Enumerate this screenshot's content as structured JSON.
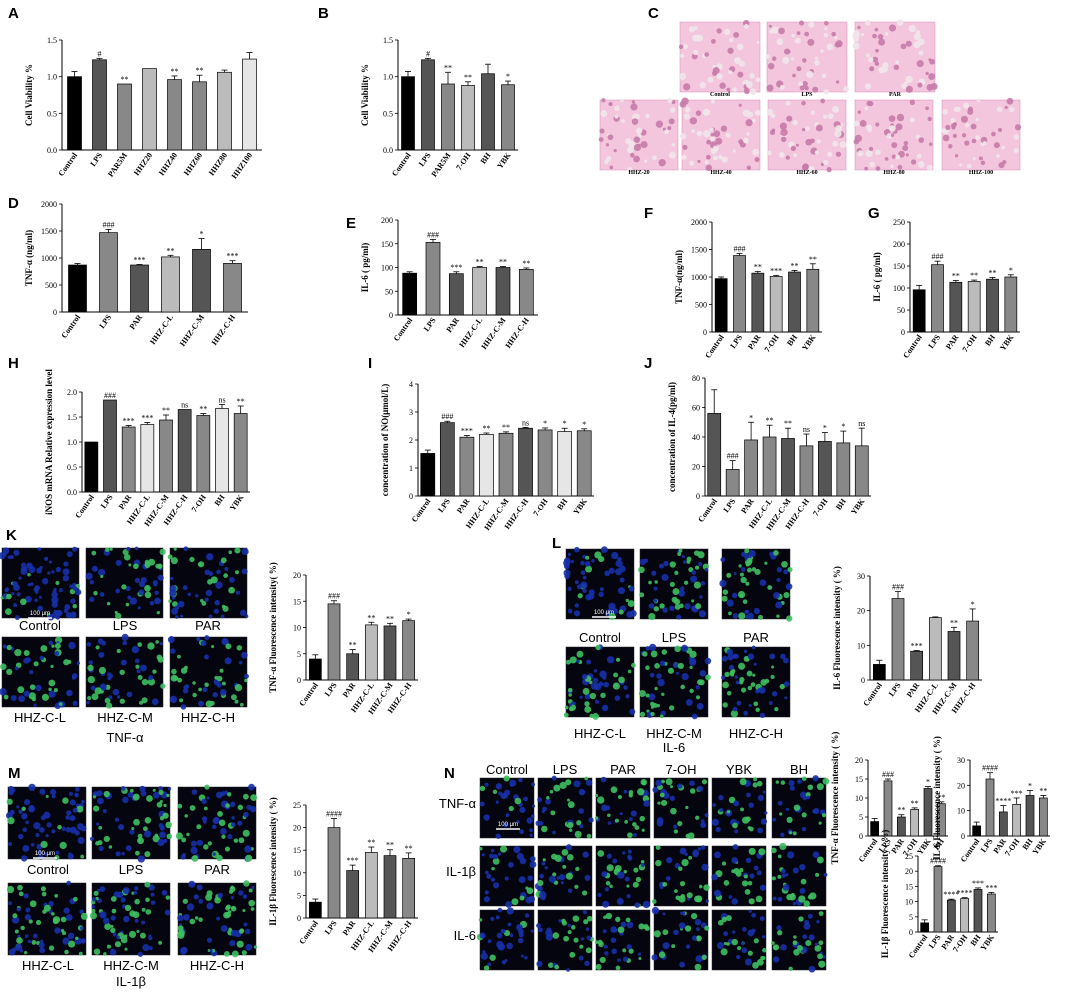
{
  "colors": {
    "black": "#000000",
    "dark": "#555555",
    "mid": "#888888",
    "light": "#bbbbbb",
    "vlight": "#e6e6e6",
    "fluor_blue": "#1730a8",
    "fluor_green": "#3ec060",
    "stain_pink": "#e89ac4"
  },
  "panels": {
    "A": "A",
    "B": "B",
    "C": "C",
    "D": "D",
    "E": "E",
    "F": "F",
    "G": "G",
    "H": "H",
    "I": "I",
    "J": "J",
    "K": "K",
    "L": "L",
    "M": "M",
    "N": "N"
  },
  "captions": {
    "C": [
      "Control",
      "LPS",
      "PAR",
      "HHZ-20",
      "HHZ-40",
      "HHZ-60",
      "HHZ-80",
      "HHZ-100"
    ],
    "K": [
      "Control",
      "LPS",
      "PAR",
      "HHZ-C-L",
      "HHZ-C-M",
      "HHZ-C-H"
    ],
    "K_title": "TNF-α",
    "L": [
      "Control",
      "LPS",
      "PAR",
      "HHZ-C-L",
      "HHZ-C-M",
      "HHZ-C-H"
    ],
    "L_title": "IL-6",
    "M": [
      "Control",
      "LPS",
      "PAR",
      "HHZ-C-L",
      "HHZ-C-M",
      "HHZ-C-H"
    ],
    "M_title": "IL-1β",
    "N_cols": [
      "Control",
      "LPS",
      "PAR",
      "7-OH",
      "YBK",
      "BH"
    ],
    "N_rows": [
      "TNF-α",
      "IL-1β",
      "IL-6"
    ],
    "scalebar": "100 μm"
  },
  "chart_data": [
    {
      "id": "A",
      "type": "bar",
      "ylabel": "Cell Viability %",
      "yticks": [
        "0.0",
        "0.5",
        "1.0",
        "1.5"
      ],
      "ylim": [
        0,
        1.5
      ],
      "categories": [
        "Control",
        "LPS",
        "PAR5M",
        "HHZ20",
        "HHZ40",
        "HHZ60",
        "HHZ80",
        "HHZ100"
      ],
      "values": [
        1.0,
        1.23,
        0.9,
        1.11,
        0.96,
        0.93,
        1.06,
        1.24
      ],
      "errors": [
        0.07,
        0.02,
        0,
        0,
        0.05,
        0.09,
        0.03,
        0.09
      ],
      "labels": [
        "",
        "#",
        "**",
        "",
        "**",
        "**",
        "",
        ""
      ],
      "fills": [
        "#000000",
        "#555555",
        "#888888",
        "#bbbbbb",
        "#888888",
        "#888888",
        "#bbbbbb",
        "#e6e6e6"
      ]
    },
    {
      "id": "B",
      "type": "bar",
      "ylabel": "Cell Viability %",
      "yticks": [
        "0.0",
        "0.5",
        "1.0",
        "1.5"
      ],
      "ylim": [
        0,
        1.5
      ],
      "categories": [
        "Control",
        "LPS",
        "PAR5M",
        "7-OH",
        "BH",
        "YBK"
      ],
      "values": [
        1.0,
        1.23,
        0.9,
        0.88,
        1.04,
        0.89
      ],
      "errors": [
        0.07,
        0.02,
        0.16,
        0.05,
        0.13,
        0.05
      ],
      "labels": [
        "",
        "#",
        "**",
        "**",
        "",
        "*"
      ],
      "fills": [
        "#000000",
        "#555555",
        "#888888",
        "#bbbbbb",
        "#555555",
        "#888888"
      ]
    },
    {
      "id": "D",
      "type": "bar",
      "ylabel": "TNF-α (ng/ml)",
      "yticks": [
        "0",
        "500",
        "1000",
        "1500",
        "2000"
      ],
      "ylim": [
        0,
        2000
      ],
      "categories": [
        "Control",
        "LPS",
        "PAR",
        "HHZ-C-L",
        "HHZ-C-M",
        "HHZ-C-H"
      ],
      "values": [
        870,
        1470,
        870,
        1020,
        1160,
        900
      ],
      "errors": [
        30,
        60,
        10,
        30,
        200,
        50
      ],
      "labels": [
        "",
        "###",
        "***",
        "**",
        "*",
        "***"
      ],
      "fills": [
        "#000000",
        "#888888",
        "#555555",
        "#bbbbbb",
        "#555555",
        "#888888"
      ]
    },
    {
      "id": "E",
      "type": "bar",
      "ylabel": "IL-6 ( pg/ml)",
      "yticks": [
        "0",
        "50",
        "100",
        "150",
        "200"
      ],
      "ylim": [
        0,
        200
      ],
      "categories": [
        "Control",
        "LPS",
        "PAR",
        "HHZ-C-L",
        "HHZ-C-M",
        "HHZ-C-H"
      ],
      "values": [
        88,
        153,
        87,
        100,
        100,
        96
      ],
      "errors": [
        3,
        6,
        4,
        2,
        2,
        3
      ],
      "labels": [
        "",
        "###",
        "***",
        "**",
        "**",
        "**"
      ],
      "fills": [
        "#000000",
        "#888888",
        "#555555",
        "#bbbbbb",
        "#555555",
        "#888888"
      ]
    },
    {
      "id": "F",
      "type": "bar",
      "ylabel": "TNF-α(ng/ml)",
      "yticks": [
        "0",
        "500",
        "1000",
        "1500",
        "2000"
      ],
      "ylim": [
        0,
        2000
      ],
      "categories": [
        "Control",
        "LPS",
        "PAR",
        "7-OH",
        "BH",
        "YBK"
      ],
      "values": [
        970,
        1390,
        1070,
        1010,
        1090,
        1140
      ],
      "errors": [
        30,
        40,
        30,
        20,
        30,
        100
      ],
      "labels": [
        "",
        "###",
        "**",
        "***",
        "**",
        "**"
      ],
      "fills": [
        "#000000",
        "#888888",
        "#555555",
        "#bbbbbb",
        "#555555",
        "#888888"
      ]
    },
    {
      "id": "G",
      "type": "bar",
      "ylabel": "IL-6 ( pg/ml)",
      "yticks": [
        "0",
        "50",
        "100",
        "150",
        "200",
        "250"
      ],
      "ylim": [
        0,
        250
      ],
      "categories": [
        "Control",
        "LPS",
        "PAR",
        "7-OH",
        "BH",
        "YBK"
      ],
      "values": [
        96,
        153,
        113,
        115,
        120,
        125
      ],
      "errors": [
        10,
        8,
        4,
        3,
        4,
        5
      ],
      "labels": [
        "",
        "###",
        "**",
        "**",
        "**",
        "*"
      ],
      "fills": [
        "#000000",
        "#888888",
        "#555555",
        "#bbbbbb",
        "#555555",
        "#888888"
      ]
    },
    {
      "id": "H",
      "type": "bar",
      "ylabel": "iNOS mRNA Relative expression level",
      "yticks": [
        "0.0",
        "0.5",
        "1.0",
        "1.5",
        "2.0"
      ],
      "ylim": [
        0,
        2.0
      ],
      "categories": [
        "Control",
        "LPS",
        "PAR",
        "HHZ-C-L",
        "HHZ-C-M",
        "HHZ-C-H",
        "7-OH",
        "BH",
        "YBK"
      ],
      "values": [
        1.0,
        1.84,
        1.3,
        1.35,
        1.44,
        1.65,
        1.53,
        1.67,
        1.57
      ],
      "errors": [
        0,
        0,
        0.03,
        0.04,
        0.1,
        0,
        0.04,
        0.08,
        0.15
      ],
      "labels": [
        "",
        "###",
        "***",
        "***",
        "**",
        "ns",
        "**",
        "ns",
        "**"
      ],
      "fills": [
        "#000000",
        "#555555",
        "#888888",
        "#e6e6e6",
        "#888888",
        "#555555",
        "#888888",
        "#e6e6e6",
        "#888888"
      ]
    },
    {
      "id": "I",
      "type": "bar",
      "ylabel": "concentration of NO(μmol/L)",
      "yticks": [
        "0",
        "1",
        "2",
        "3",
        "4"
      ],
      "ylim": [
        0,
        4
      ],
      "categories": [
        "Control",
        "LPS",
        "PAR",
        "HHZ-C-L",
        "HHZ-C-M",
        "HHZ-C-H",
        "7-OH",
        "BH",
        "YBK"
      ],
      "values": [
        1.52,
        2.62,
        2.1,
        2.2,
        2.24,
        2.42,
        2.36,
        2.3,
        2.33
      ],
      "errors": [
        0.12,
        0.05,
        0.06,
        0.05,
        0.05,
        0.03,
        0.07,
        0.12,
        0.07
      ],
      "labels": [
        "",
        "###",
        "***",
        "**",
        "**",
        "ns",
        "*",
        "*",
        "*"
      ],
      "fills": [
        "#000000",
        "#555555",
        "#888888",
        "#e6e6e6",
        "#888888",
        "#555555",
        "#888888",
        "#e6e6e6",
        "#888888"
      ]
    },
    {
      "id": "J",
      "type": "bar",
      "ylabel": "concentration of IL-4(pg/ml)",
      "yticks": [
        "0",
        "20",
        "40",
        "60",
        "80"
      ],
      "ylim": [
        0,
        80
      ],
      "categories": [
        "Control",
        "LPS",
        "PAR",
        "HHZ-C-L",
        "HHZ-C-M",
        "HHZ-C-H",
        "7-OH",
        "BH",
        "YBK"
      ],
      "values": [
        56,
        18,
        38,
        40,
        39,
        34,
        37,
        36,
        34
      ],
      "errors": [
        16,
        6,
        12,
        8,
        7,
        8,
        6,
        8,
        12
      ],
      "labels": [
        "",
        "###",
        "*",
        "**",
        "**",
        "ns",
        "*",
        "*",
        "ns"
      ],
      "fills": [
        "#555555",
        "#888888",
        "#888888",
        "#888888",
        "#555555",
        "#888888",
        "#555555",
        "#888888",
        "#888888"
      ]
    },
    {
      "id": "K",
      "type": "bar",
      "ylabel": "TNF-α Fluorescence intensity( %)",
      "yticks": [
        "0",
        "5",
        "10",
        "15",
        "20"
      ],
      "ylim": [
        0,
        20
      ],
      "categories": [
        "Control",
        "LPS",
        "PAR",
        "HHZ-C-L",
        "HHZ-C-M",
        "HHZ-C-H"
      ],
      "values": [
        4.0,
        14.5,
        5.0,
        10.5,
        10.3,
        11.3
      ],
      "errors": [
        0.8,
        0.6,
        0.8,
        0.5,
        0.5,
        0.3
      ],
      "labels": [
        "",
        "###",
        "**",
        "**",
        "**",
        "*"
      ],
      "fills": [
        "#000000",
        "#888888",
        "#555555",
        "#bbbbbb",
        "#555555",
        "#888888"
      ]
    },
    {
      "id": "L",
      "type": "bar",
      "ylabel": "IL-6 Fluorescence intensity ( %)",
      "yticks": [
        "0",
        "10",
        "20",
        "30"
      ],
      "ylim": [
        0,
        30
      ],
      "categories": [
        "Control",
        "LPS",
        "PAR",
        "HHZ-C-L",
        "HHZ-C-M",
        "HHZ-C-H"
      ],
      "values": [
        4.5,
        23.5,
        8.3,
        18.0,
        14.0,
        17.0
      ],
      "errors": [
        1.2,
        2.0,
        0.2,
        0.2,
        1.2,
        3.5
      ],
      "labels": [
        "",
        "###",
        "***",
        "",
        "**",
        "*"
      ],
      "fills": [
        "#000000",
        "#888888",
        "#555555",
        "#bbbbbb",
        "#555555",
        "#888888"
      ]
    },
    {
      "id": "M",
      "type": "bar",
      "ylabel": "IL-1β Fluorescence intensity ( %)",
      "yticks": [
        "0",
        "5",
        "10",
        "15",
        "20",
        "25"
      ],
      "ylim": [
        0,
        25
      ],
      "categories": [
        "Control",
        "LPS",
        "PAR",
        "HHZ-C-L",
        "HHZ-C-M",
        "HHZ-C-H"
      ],
      "values": [
        3.5,
        20.0,
        10.5,
        14.5,
        13.8,
        13.2
      ],
      "errors": [
        0.7,
        2.0,
        1.2,
        1.2,
        1.3,
        1.2
      ],
      "labels": [
        "",
        "####",
        "***",
        "**",
        "**",
        "**"
      ],
      "fills": [
        "#000000",
        "#888888",
        "#555555",
        "#bbbbbb",
        "#555555",
        "#888888"
      ]
    },
    {
      "id": "N1",
      "type": "bar",
      "ylabel": "TNF-α Fluorescence intensity ( %)",
      "yticks": [
        "0",
        "5",
        "10",
        "15",
        "20"
      ],
      "ylim": [
        0,
        20
      ],
      "categories": [
        "Control",
        "LPS",
        "PAR",
        "7-OH",
        "YBK",
        "BH"
      ],
      "values": [
        3.8,
        14.5,
        5.0,
        7.0,
        12.5,
        8.5
      ],
      "errors": [
        0.8,
        0.5,
        0.6,
        0.4,
        0.5,
        0.5
      ],
      "labels": [
        "",
        "###",
        "**",
        "**",
        "*",
        "**"
      ],
      "fills": [
        "#000000",
        "#888888",
        "#555555",
        "#bbbbbb",
        "#555555",
        "#888888"
      ]
    },
    {
      "id": "N2",
      "type": "bar",
      "ylabel": "IL-6 Fluorescence intensity ( %)",
      "yticks": [
        "0",
        "10",
        "20",
        "30"
      ],
      "ylim": [
        0,
        30
      ],
      "categories": [
        "Control",
        "LPS",
        "PAR",
        "7-OH",
        "BH",
        "YBK"
      ],
      "values": [
        4.0,
        22.5,
        9.5,
        12.5,
        16.0,
        15.0
      ],
      "errors": [
        1.5,
        2.5,
        2.5,
        2.5,
        2.0,
        1.0
      ],
      "labels": [
        "",
        "####",
        "****",
        "***",
        "*",
        "**"
      ],
      "fills": [
        "#000000",
        "#888888",
        "#555555",
        "#bbbbbb",
        "#555555",
        "#888888"
      ]
    },
    {
      "id": "N3",
      "type": "bar",
      "ylabel": "IL-1β Fluorescence intensity ( %)",
      "yticks": [
        "0",
        "5",
        "10",
        "15",
        "20",
        "25"
      ],
      "ylim": [
        0,
        25
      ],
      "categories": [
        "Control",
        "LPS",
        "PAR",
        "7-OH",
        "BH",
        "YBK"
      ],
      "values": [
        3.0,
        21.5,
        10.5,
        11.0,
        14.0,
        12.5
      ],
      "errors": [
        1.0,
        0.3,
        0.3,
        0.3,
        0.5,
        0.5
      ],
      "labels": [
        "",
        "####",
        "****",
        "****",
        "***",
        "***"
      ],
      "fills": [
        "#000000",
        "#888888",
        "#555555",
        "#bbbbbb",
        "#555555",
        "#888888"
      ]
    }
  ]
}
